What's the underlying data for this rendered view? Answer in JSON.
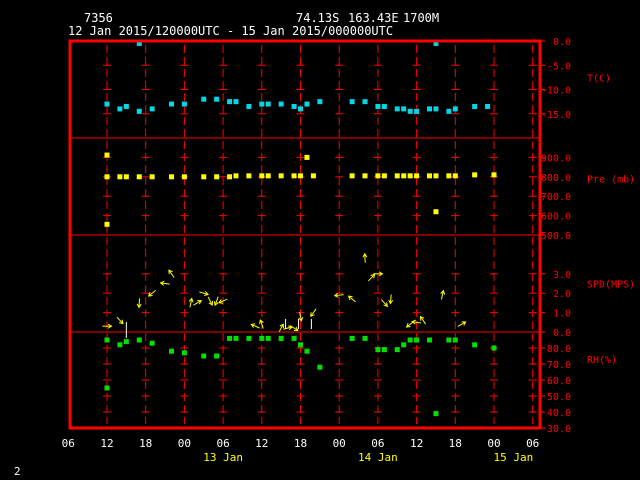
{
  "header": {
    "station": "7356",
    "lat": "74.13S",
    "lon": "163.43E",
    "elev": "1700M",
    "range": "12 Jan 2015/120000UTC - 15 Jan 2015/000000UTC"
  },
  "footer": {
    "page": "2"
  },
  "colors": {
    "frame": "#ff0000",
    "grid": "#ff0000",
    "temp": "#00d8e8",
    "pres": "#ffff00",
    "wind": "#ffff00",
    "rh": "#00e000",
    "text": "#ffffff"
  },
  "chart_data": {
    "type": "scatter",
    "x_axis": {
      "ticks": [
        "06",
        "12",
        "18",
        "00",
        "06",
        "12",
        "18",
        "00",
        "06",
        "12",
        "18",
        "00",
        "06"
      ],
      "tick_hours": [
        -6,
        0,
        6,
        12,
        18,
        24,
        30,
        36,
        42,
        48,
        54,
        60,
        66
      ],
      "day_labels": [
        {
          "label": "13 Jan",
          "hour": 18
        },
        {
          "label": "14 Jan",
          "hour": 42
        },
        {
          "label": "15 Jan",
          "hour": 63
        }
      ],
      "note": "hours after 12 Jan 2015 12:00 UTC"
    },
    "panels": [
      {
        "name": "T(C)",
        "ticks": [
          "0.0",
          "-5.0",
          "-10.0",
          "-15.0"
        ],
        "tick_values": [
          0,
          -5,
          -10,
          -15
        ],
        "ylim": [
          -20,
          0
        ],
        "color": "temp",
        "points": [
          [
            0,
            -13
          ],
          [
            2,
            -14
          ],
          [
            3,
            -13.5
          ],
          [
            5,
            -14.5
          ],
          [
            7,
            -14
          ],
          [
            10,
            -13
          ],
          [
            12,
            -13
          ],
          [
            15,
            -12
          ],
          [
            17,
            -12
          ],
          [
            19,
            -12.5
          ],
          [
            20,
            -12.5
          ],
          [
            22,
            -13.5
          ],
          [
            24,
            -13
          ],
          [
            25,
            -13
          ],
          [
            27,
            -13
          ],
          [
            29,
            -13.5
          ],
          [
            30,
            -14
          ],
          [
            31,
            -13
          ],
          [
            33,
            -12.5
          ],
          [
            38,
            -12.5
          ],
          [
            40,
            -12.5
          ],
          [
            42,
            -13.5
          ],
          [
            43,
            -13.5
          ],
          [
            45,
            -14
          ],
          [
            46,
            -14
          ],
          [
            47,
            -14.5
          ],
          [
            48,
            -14.5
          ],
          [
            50,
            -14
          ],
          [
            51,
            -14
          ],
          [
            53,
            -14.5
          ],
          [
            54,
            -14
          ],
          [
            57,
            -13.5
          ],
          [
            59,
            -13.5
          ],
          [
            5,
            -0.5
          ],
          [
            51,
            -0.5
          ]
        ]
      },
      {
        "name": "Pre (mb)",
        "ticks": [
          "900.0",
          "800.0",
          "700.0",
          "600.0",
          "500.0"
        ],
        "tick_values": [
          900,
          800,
          700,
          600,
          500
        ],
        "ylim": [
          500,
          1000
        ],
        "color": "pres",
        "points": [
          [
            0,
            912
          ],
          [
            0,
            800
          ],
          [
            0,
            555
          ],
          [
            2,
            800
          ],
          [
            3,
            800
          ],
          [
            5,
            800
          ],
          [
            7,
            800
          ],
          [
            10,
            800
          ],
          [
            12,
            800
          ],
          [
            15,
            800
          ],
          [
            17,
            800
          ],
          [
            19,
            800
          ],
          [
            20,
            805
          ],
          [
            22,
            805
          ],
          [
            24,
            805
          ],
          [
            25,
            805
          ],
          [
            27,
            805
          ],
          [
            29,
            805
          ],
          [
            30,
            805
          ],
          [
            31,
            900
          ],
          [
            32,
            805
          ],
          [
            38,
            805
          ],
          [
            40,
            805
          ],
          [
            42,
            805
          ],
          [
            43,
            805
          ],
          [
            45,
            805
          ],
          [
            46,
            805
          ],
          [
            47,
            805
          ],
          [
            48,
            805
          ],
          [
            50,
            805
          ],
          [
            51,
            805
          ],
          [
            51,
            620
          ],
          [
            53,
            805
          ],
          [
            54,
            805
          ],
          [
            57,
            810
          ],
          [
            60,
            810
          ]
        ]
      },
      {
        "name": "SPD(MPS)",
        "ticks": [
          "3.0",
          "2.0",
          "1.0",
          "0.0"
        ],
        "tick_values": [
          3,
          2,
          1,
          0
        ],
        "ylim": [
          0,
          5
        ],
        "color": "wind",
        "points": [
          [
            0,
            0.3
          ],
          [
            2,
            0.6
          ],
          [
            5,
            1.5
          ],
          [
            7,
            2
          ],
          [
            9,
            2.5
          ],
          [
            10,
            3
          ],
          [
            13,
            1.5
          ],
          [
            14,
            1.5
          ],
          [
            15,
            2
          ],
          [
            16,
            1.6
          ],
          [
            17,
            1.6
          ],
          [
            18,
            1.6
          ],
          [
            23,
            0.3
          ],
          [
            24,
            0.4
          ],
          [
            27,
            0.2
          ],
          [
            28,
            0.2
          ],
          [
            29,
            0.2
          ],
          [
            30,
            0.8
          ],
          [
            32,
            1
          ],
          [
            36,
            1.9
          ],
          [
            38,
            1.7
          ],
          [
            40,
            3.8
          ],
          [
            41,
            2.8
          ],
          [
            42,
            3
          ],
          [
            43,
            1.5
          ],
          [
            44,
            1.7
          ],
          [
            47,
            0.4
          ],
          [
            48,
            0.5
          ],
          [
            49,
            0.6
          ],
          [
            52,
            1.9
          ],
          [
            55,
            0.4
          ]
        ]
      },
      {
        "name": "RH(%)",
        "ticks": [
          "80.0",
          "70.0",
          "60.0",
          "50.0",
          "40.0",
          "30.0"
        ],
        "tick_values": [
          80,
          70,
          60,
          50,
          40,
          30
        ],
        "ylim": [
          30,
          90
        ],
        "color": "rh",
        "points": [
          [
            0,
            85
          ],
          [
            0,
            55
          ],
          [
            2,
            82
          ],
          [
            3,
            84
          ],
          [
            5,
            85
          ],
          [
            7,
            83
          ],
          [
            10,
            78
          ],
          [
            12,
            77
          ],
          [
            15,
            75
          ],
          [
            17,
            75
          ],
          [
            19,
            86
          ],
          [
            20,
            86
          ],
          [
            22,
            86
          ],
          [
            24,
            86
          ],
          [
            25,
            86
          ],
          [
            27,
            86
          ],
          [
            29,
            86
          ],
          [
            30,
            82
          ],
          [
            31,
            78
          ],
          [
            33,
            68
          ],
          [
            38,
            86
          ],
          [
            40,
            86
          ],
          [
            42,
            79
          ],
          [
            43,
            79
          ],
          [
            45,
            79
          ],
          [
            46,
            82
          ],
          [
            47,
            85
          ],
          [
            48,
            85
          ],
          [
            50,
            85
          ],
          [
            51,
            39
          ],
          [
            53,
            85
          ],
          [
            54,
            85
          ],
          [
            57,
            82
          ],
          [
            60,
            80
          ]
        ]
      }
    ]
  }
}
